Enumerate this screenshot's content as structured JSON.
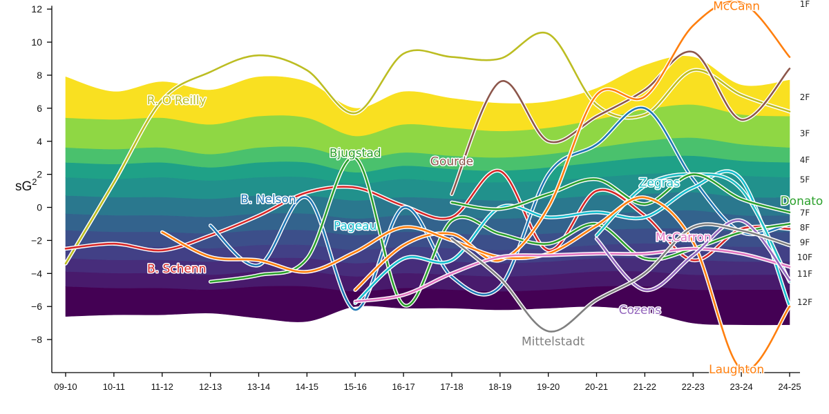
{
  "chart_data": {
    "type": "area",
    "title": "",
    "ylabel": "sG²",
    "ylabel_base": "sG",
    "ylabel_exp": "2",
    "xlabel": "",
    "ylim": [
      -10,
      12.3
    ],
    "yticks": [
      -8,
      -6,
      -4,
      -2,
      0,
      2,
      4,
      6,
      8,
      10,
      12
    ],
    "categories": [
      "09-10",
      "10-11",
      "11-12",
      "12-13",
      "13-14",
      "14-15",
      "15-16",
      "16-17",
      "17-18",
      "18-19",
      "19-20",
      "20-21",
      "21-22",
      "22-23",
      "23-24",
      "24-25"
    ],
    "band_colors": [
      "#f9e021",
      "#8fd744",
      "#4ac16d",
      "#1fa187",
      "#21918c",
      "#2a788e",
      "#33638d",
      "#3c4f8a",
      "#424086",
      "#472d7b",
      "#481a6c",
      "#440154"
    ],
    "band_labels": [
      {
        "label": "1F",
        "value": 12.6
      },
      {
        "label": "2F",
        "value": 6.5
      },
      {
        "label": "3F",
        "value": 4.3
      },
      {
        "label": "4F",
        "value": 2.7
      },
      {
        "label": "5F",
        "value": 1.5
      },
      {
        "label": "7F",
        "value": -0.5
      },
      {
        "label": "8F",
        "value": -1.4
      },
      {
        "label": "9F",
        "value": -2.3
      },
      {
        "label": "10F",
        "value": -3.2
      },
      {
        "label": "11F",
        "value": -4.2
      },
      {
        "label": "12F",
        "value": -5.9
      }
    ],
    "band_boundaries": [
      [
        7.9,
        7.0,
        7.6,
        7.1,
        7.9,
        7.6,
        6.0,
        7.0,
        6.6,
        6.3,
        6.4,
        7.2,
        8.6,
        9.1,
        7.4,
        7.7
      ],
      [
        5.4,
        5.3,
        5.4,
        5.0,
        5.5,
        5.4,
        4.3,
        5.0,
        4.8,
        4.6,
        4.8,
        5.3,
        5.9,
        6.2,
        5.6,
        5.5
      ],
      [
        3.6,
        3.5,
        3.6,
        3.2,
        3.6,
        3.6,
        2.9,
        3.3,
        3.1,
        3.0,
        3.2,
        3.6,
        4.0,
        4.2,
        3.8,
        3.6
      ],
      [
        2.7,
        2.6,
        2.7,
        2.4,
        2.7,
        2.7,
        2.1,
        2.5,
        2.3,
        2.2,
        2.4,
        2.7,
        3.0,
        3.1,
        2.8,
        2.7
      ],
      [
        1.8,
        1.7,
        1.8,
        1.6,
        1.8,
        1.8,
        1.4,
        1.7,
        1.5,
        1.5,
        1.6,
        1.8,
        2.0,
        2.1,
        1.9,
        1.8
      ],
      [
        0.7,
        0.6,
        0.6,
        0.5,
        0.7,
        0.7,
        0.4,
        0.6,
        0.5,
        0.4,
        0.5,
        0.7,
        0.8,
        0.9,
        0.6,
        0.6
      ],
      [
        -0.4,
        -0.5,
        -0.5,
        -0.6,
        -0.4,
        -0.4,
        -0.7,
        -0.5,
        -0.6,
        -0.7,
        -0.6,
        -0.4,
        -0.3,
        -0.2,
        -0.5,
        -0.5
      ],
      [
        -1.4,
        -1.5,
        -1.5,
        -1.6,
        -1.4,
        -1.4,
        -1.7,
        -1.5,
        -1.6,
        -1.7,
        -1.6,
        -1.4,
        -1.3,
        -1.3,
        -1.5,
        -1.5
      ],
      [
        -2.3,
        -2.4,
        -2.4,
        -2.5,
        -2.3,
        -2.3,
        -2.6,
        -2.4,
        -2.5,
        -2.6,
        -2.5,
        -2.3,
        -2.2,
        -2.3,
        -2.4,
        -2.4
      ],
      [
        -3.1,
        -3.2,
        -3.2,
        -3.3,
        -3.1,
        -3.1,
        -3.4,
        -3.2,
        -3.3,
        -3.4,
        -3.3,
        -3.1,
        -3.1,
        -3.2,
        -3.3,
        -3.3
      ],
      [
        -3.9,
        -4.0,
        -4.0,
        -4.1,
        -3.9,
        -3.9,
        -4.2,
        -4.0,
        -4.1,
        -4.2,
        -4.1,
        -3.9,
        -3.9,
        -4.1,
        -4.1,
        -4.1
      ],
      [
        -4.8,
        -4.9,
        -4.9,
        -5.0,
        -4.8,
        -4.8,
        -5.1,
        -4.9,
        -5.0,
        -5.1,
        -5.0,
        -4.8,
        -4.8,
        -5.0,
        -5.0,
        -5.0
      ],
      [
        -6.6,
        -6.5,
        -6.5,
        -6.4,
        -6.7,
        -6.9,
        -6.0,
        -6.1,
        -6.1,
        -6.2,
        -6.1,
        -6.0,
        -6.3,
        -7.0,
        -7.1,
        -7.1
      ]
    ],
    "series": [
      {
        "name": "R. O'Reilly",
        "color": "#bcbd22",
        "values": [
          -3.4,
          1.5,
          6.5,
          8.2,
          9.2,
          8.3,
          5.7,
          9.3,
          9.1,
          9.0,
          10.5,
          6.2,
          5.6,
          8.3,
          6.8,
          5.8
        ],
        "label_at": [
          2.3,
          6.5
        ]
      },
      {
        "name": "B. Schenn",
        "color": "#d62728",
        "values": [
          -2.5,
          -2.2,
          -2.6,
          -1.7,
          -0.5,
          0.9,
          1.2,
          0.1,
          -0.6,
          2.2,
          -2.6,
          1.0,
          -0.5,
          -3.2,
          -1.3,
          -1.3
        ],
        "label_at": [
          2.3,
          -3.7
        ]
      },
      {
        "name": "B. Nelson",
        "color": "#1f77b4",
        "values": [
          null,
          null,
          null,
          -1.1,
          -3.5,
          0.6,
          -6.2,
          0.0,
          -4.2,
          -4.8,
          2.0,
          3.8,
          6.0,
          1.7,
          -1.5,
          -1.0
        ],
        "label_at": [
          4.2,
          0.5
        ]
      },
      {
        "name": "Bjugstad",
        "color": "#2ca02c",
        "values": [
          null,
          null,
          null,
          -4.5,
          -4.1,
          -3.1,
          3.0,
          -5.9,
          -0.8,
          -1.6,
          -2.2,
          -1.0,
          -3.1,
          -2.5,
          -1.5,
          -1.0
        ],
        "label_at": [
          6.0,
          3.3
        ]
      },
      {
        "name": "Gourde",
        "color": "#8c564b",
        "values": [
          null,
          null,
          null,
          null,
          null,
          null,
          null,
          null,
          0.8,
          7.6,
          4.0,
          5.5,
          7.1,
          9.4,
          5.3,
          8.4
        ],
        "label_at": [
          8.0,
          2.8
        ]
      },
      {
        "name": "Pageau",
        "color": "#17becf",
        "values": [
          null,
          null,
          null,
          null,
          null,
          null,
          -5.8,
          -3.1,
          -3.2,
          0.0,
          -0.6,
          -0.3,
          -0.6,
          1.2,
          1.7,
          -6.0
        ],
        "label_at": [
          6.0,
          -1.1
        ]
      },
      {
        "name": "Zegras",
        "color": "#1ebec4",
        "values": [
          null,
          null,
          null,
          null,
          null,
          null,
          null,
          null,
          null,
          null,
          null,
          -1.7,
          1.3,
          2.0,
          1.1,
          -4.5
        ],
        "label_at": [
          12.3,
          1.5
        ]
      },
      {
        "name": "Donato",
        "color": "#2ca02c",
        "values": [
          null,
          null,
          null,
          null,
          null,
          null,
          null,
          null,
          0.3,
          -0.1,
          0.8,
          1.7,
          0.2,
          2.0,
          0.5,
          -0.3
        ],
        "label_at": [
          15.25,
          0.4
        ]
      },
      {
        "name": "McCann",
        "color": "#ff7f0e",
        "values": [
          null,
          null,
          null,
          null,
          null,
          null,
          -5.0,
          -2.3,
          -1.6,
          -3.2,
          0.0,
          6.8,
          6.7,
          11.0,
          12.4,
          9.1
        ],
        "label_at": [
          13.9,
          12.2
        ]
      },
      {
        "name": "Laughton",
        "color": "#ff7f0e",
        "values": [
          null,
          null,
          -1.5,
          -3.0,
          -3.2,
          -3.9,
          -2.7,
          -1.2,
          -2.0,
          -3.0,
          -2.8,
          -1.1,
          0.6,
          -2.1,
          -9.8,
          -6.0
        ],
        "label_at": [
          13.9,
          -9.8
        ]
      },
      {
        "name": "McCarron",
        "color": "#e377c2",
        "values": [
          null,
          null,
          null,
          null,
          null,
          null,
          -5.7,
          -5.3,
          -4.0,
          -3.0,
          -2.9,
          -2.8,
          -2.8,
          -2.5,
          -2.8,
          -3.6
        ],
        "label_at": [
          12.8,
          -1.8
        ]
      },
      {
        "name": "Cozens",
        "color": "#9467bd",
        "values": [
          null,
          null,
          null,
          null,
          null,
          null,
          null,
          null,
          null,
          null,
          null,
          -1.9,
          -5.0,
          -2.9,
          -0.8,
          -4.4
        ],
        "label_at": [
          11.9,
          -6.2
        ]
      },
      {
        "name": "Mittelstadt",
        "color": "#7f7f7f",
        "values": [
          null,
          null,
          null,
          null,
          null,
          null,
          null,
          null,
          -1.9,
          -4.3,
          -7.5,
          -5.6,
          -4.0,
          -1.2,
          -1.4,
          -2.3
        ],
        "label_at": [
          10.1,
          -8.1
        ]
      }
    ]
  }
}
